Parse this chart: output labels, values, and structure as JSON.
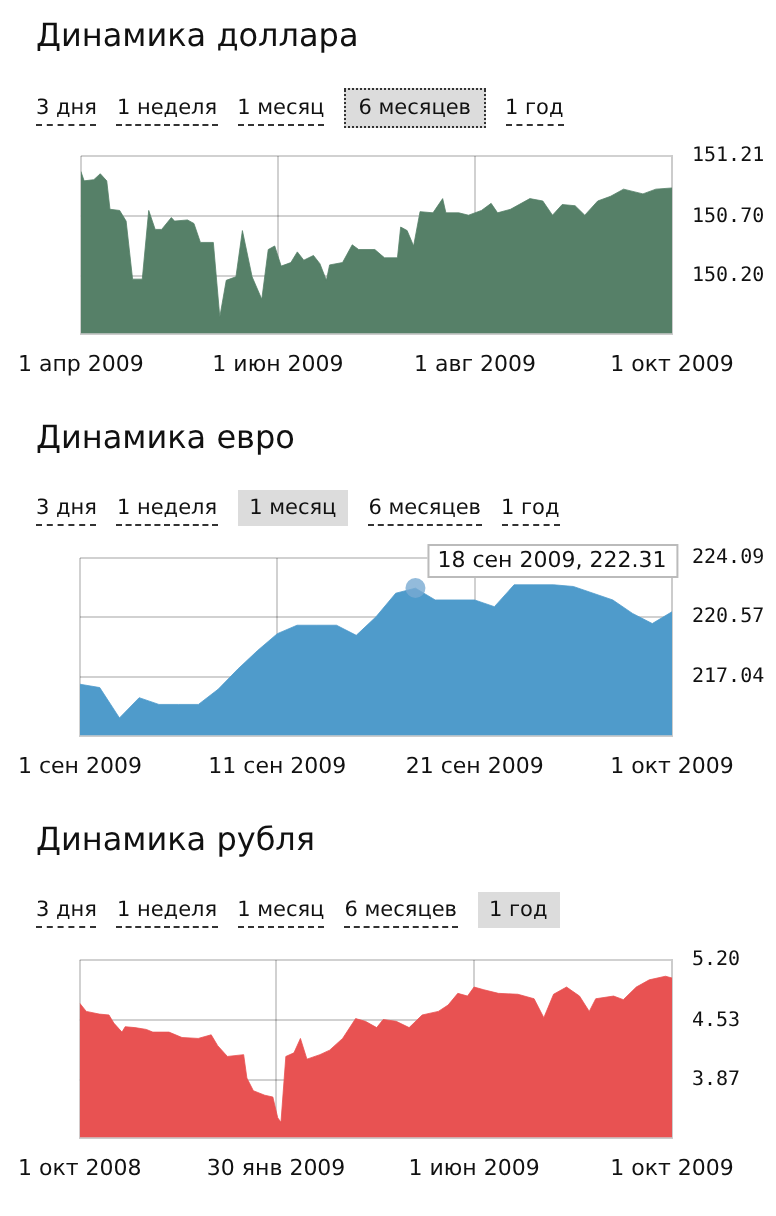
{
  "chart_data": [
    {
      "type": "area",
      "title": "Динамика доллара",
      "annotations": [
        "3 дня",
        "1 неделя",
        "1 месяц",
        "6 месяцев",
        "1 год"
      ],
      "grid": true,
      "xlim": [
        "2009-04-01",
        "2009-10-01"
      ],
      "xticks": [
        {
          "value": "2009-04-01",
          "label": "1 апр 2009"
        },
        {
          "value": "2009-06-01",
          "label": "1 июн 2009"
        },
        {
          "value": "2009-08-01",
          "label": "1 авг 2009"
        },
        {
          "value": "2009-10-01",
          "label": "1 окт 2009"
        }
      ],
      "ylim": [
        149.71,
        151.21
      ],
      "yticks": [
        {
          "value": 150.2,
          "label": "150.20"
        },
        {
          "value": 150.7,
          "label": "150.70"
        },
        151.21
      ],
      "series": [
        {
          "color": "#568068",
          "x": [
            "2009-04-01",
            "2009-04-02",
            "2009-04-05",
            "2009-04-07",
            "2009-04-09",
            "2009-04-10",
            "2009-04-13",
            "2009-04-15",
            "2009-04-17",
            "2009-04-20",
            "2009-04-22",
            "2009-04-24",
            "2009-04-26",
            "2009-04-29",
            "2009-04-30",
            "2009-05-04",
            "2009-05-06",
            "2009-05-08",
            "2009-05-12",
            "2009-05-14",
            "2009-05-16",
            "2009-05-19",
            "2009-05-21",
            "2009-05-22",
            "2009-05-24",
            "2009-05-27",
            "2009-05-29",
            "2009-05-31",
            "2009-06-02",
            "2009-06-05",
            "2009-06-07",
            "2009-06-09",
            "2009-06-12",
            "2009-06-14",
            "2009-06-16",
            "2009-06-17",
            "2009-06-21",
            "2009-06-24",
            "2009-06-26",
            "2009-07-01",
            "2009-07-04",
            "2009-07-08",
            "2009-07-09",
            "2009-07-11",
            "2009-07-13",
            "2009-07-15",
            "2009-07-19",
            "2009-07-22",
            "2009-07-23",
            "2009-07-27",
            "2009-07-30",
            "2009-08-03",
            "2009-08-06",
            "2009-08-08",
            "2009-08-12",
            "2009-08-18",
            "2009-08-22",
            "2009-08-25",
            "2009-08-28",
            "2009-09-01",
            "2009-09-04",
            "2009-09-08",
            "2009-09-12",
            "2009-09-16",
            "2009-09-22",
            "2009-09-26",
            "2009-10-01"
          ],
          "values": [
            151.08,
            151.0,
            151.01,
            151.06,
            151.0,
            150.76,
            150.75,
            150.66,
            150.17,
            150.17,
            150.75,
            150.59,
            150.59,
            150.69,
            150.66,
            150.67,
            150.64,
            150.48,
            150.48,
            149.85,
            150.16,
            150.19,
            150.58,
            150.45,
            150.19,
            150.0,
            150.42,
            150.45,
            150.28,
            150.31,
            150.4,
            150.33,
            150.37,
            150.3,
            150.16,
            150.29,
            150.31,
            150.46,
            150.42,
            150.42,
            150.35,
            150.35,
            150.61,
            150.58,
            150.45,
            150.74,
            150.73,
            150.85,
            150.73,
            150.73,
            150.71,
            150.75,
            150.81,
            150.73,
            150.76,
            150.85,
            150.83,
            150.71,
            150.8,
            150.79,
            150.71,
            150.83,
            150.87,
            150.93,
            150.89,
            150.93,
            150.94
          ]
        }
      ]
    },
    {
      "type": "area",
      "title": "Динамика евро",
      "annotations": [
        "3 дня",
        "1 неделя",
        "1 месяц",
        "6 месяцев",
        "1 год",
        {
          "text": "18 сен 2009, 222.31",
          "x": "2009-09-18",
          "y": 222.31
        }
      ],
      "grid": true,
      "xlim": [
        "2009-09-01",
        "2009-10-01"
      ],
      "xticks": [
        {
          "value": "2009-09-01",
          "label": "1 сен 2009"
        },
        {
          "value": "2009-09-11",
          "label": "11 сен 2009"
        },
        {
          "value": "2009-09-21",
          "label": "21 сен 2009"
        },
        {
          "value": "2009-10-01",
          "label": "1 окт 2009"
        }
      ],
      "ylim": [
        213.55,
        224.09
      ],
      "yticks": [
        217.04,
        220.57,
        224.09
      ],
      "series": [
        {
          "color": "#4f9bcb",
          "x": [
            "2009-09-01",
            "2009-09-02",
            "2009-09-03",
            "2009-09-04",
            "2009-09-05",
            "2009-09-06",
            "2009-09-07",
            "2009-09-08",
            "2009-09-09",
            "2009-09-10",
            "2009-09-11",
            "2009-09-12",
            "2009-09-13",
            "2009-09-14",
            "2009-09-15",
            "2009-09-16",
            "2009-09-17",
            "2009-09-18",
            "2009-09-19",
            "2009-09-20",
            "2009-09-21",
            "2009-09-22",
            "2009-09-23",
            "2009-09-24",
            "2009-09-25",
            "2009-09-26",
            "2009-09-27",
            "2009-09-28",
            "2009-09-29",
            "2009-09-30",
            "2009-10-01"
          ],
          "values": [
            216.6,
            216.4,
            214.6,
            215.8,
            215.4,
            215.4,
            215.4,
            216.3,
            217.5,
            218.6,
            219.6,
            220.1,
            220.1,
            220.1,
            219.5,
            220.6,
            222.0,
            222.3,
            221.6,
            221.6,
            221.6,
            221.2,
            222.5,
            222.5,
            222.5,
            222.4,
            222.0,
            221.6,
            220.8,
            220.2,
            220.9
          ]
        }
      ]
    },
    {
      "type": "area",
      "title": "Динамика рубля",
      "annotations": [
        "3 дня",
        "1 неделя",
        "1 месяц",
        "6 месяцев",
        "1 год"
      ],
      "grid": true,
      "xlim": [
        "2008-10-01",
        "2009-10-01"
      ],
      "xticks": [
        {
          "value": "2008-10-01",
          "label": "1 окт 2008"
        },
        {
          "value": "2009-01-30",
          "label": "30 янв 2009"
        },
        {
          "value": "2009-06-01",
          "label": "1 июн 2009"
        },
        {
          "value": "2009-10-01",
          "label": "1 окт 2009"
        }
      ],
      "ylim": [
        3.23,
        5.2
      ],
      "yticks": [
        3.87,
        4.53,
        {
          "value": 5.2,
          "label": "5.20"
        }
      ],
      "series": [
        {
          "color": "#e85252",
          "x": [
            "2008-10-01",
            "2008-10-05",
            "2008-10-13",
            "2008-10-19",
            "2008-10-22",
            "2008-10-27",
            "2008-10-29",
            "2008-11-04",
            "2008-11-11",
            "2008-11-15",
            "2008-11-25",
            "2008-12-03",
            "2008-12-13",
            "2008-12-21",
            "2008-12-25",
            "2008-12-31",
            "2009-01-10",
            "2009-01-12",
            "2009-01-16",
            "2009-01-23",
            "2009-01-28",
            "2009-01-31",
            "2009-02-02",
            "2009-02-05",
            "2009-02-10",
            "2009-02-14",
            "2009-02-18",
            "2009-02-26",
            "2009-03-04",
            "2009-03-12",
            "2009-03-20",
            "2009-03-26",
            "2009-04-02",
            "2009-04-06",
            "2009-04-14",
            "2009-04-22",
            "2009-04-30",
            "2009-05-10",
            "2009-05-16",
            "2009-05-22",
            "2009-05-28",
            "2009-06-01",
            "2009-06-07",
            "2009-06-16",
            "2009-06-28",
            "2009-07-08",
            "2009-07-14",
            "2009-07-20",
            "2009-07-28",
            "2009-08-05",
            "2009-08-11",
            "2009-08-15",
            "2009-08-26",
            "2009-09-01",
            "2009-09-09",
            "2009-09-17",
            "2009-09-27",
            "2009-10-01"
          ],
          "values": [
            4.72,
            4.63,
            4.6,
            4.59,
            4.5,
            4.4,
            4.46,
            4.45,
            4.43,
            4.4,
            4.4,
            4.34,
            4.33,
            4.37,
            4.25,
            4.13,
            4.15,
            3.89,
            3.75,
            3.7,
            3.68,
            3.45,
            3.4,
            4.13,
            4.17,
            4.33,
            4.1,
            4.15,
            4.2,
            4.33,
            4.55,
            4.52,
            4.45,
            4.54,
            4.52,
            4.45,
            4.59,
            4.63,
            4.7,
            4.83,
            4.8,
            4.9,
            4.87,
            4.83,
            4.82,
            4.77,
            4.56,
            4.82,
            4.9,
            4.8,
            4.63,
            4.77,
            4.8,
            4.76,
            4.9,
            4.98,
            5.02,
            5.0
          ]
        }
      ]
    }
  ]
}
